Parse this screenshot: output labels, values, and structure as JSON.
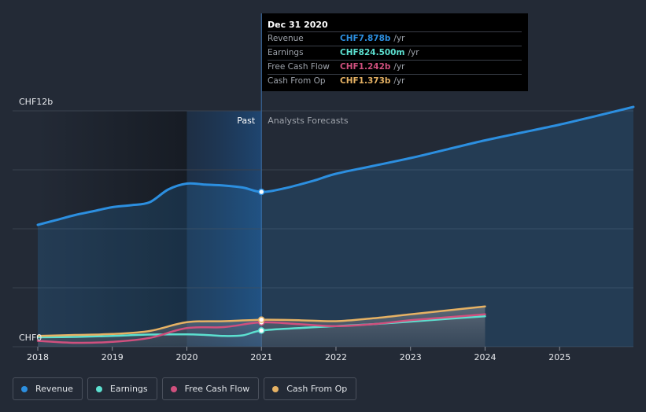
{
  "chart_data": {
    "type": "area",
    "y_axis": {
      "min_label": "CHF0",
      "max_label": "CHF12b",
      "ylim": [
        0,
        12
      ]
    },
    "unit": "CHF billions",
    "x_ticks": [
      "2018",
      "2019",
      "2020",
      "2021",
      "2022",
      "2023",
      "2024",
      "2025"
    ],
    "xlim": [
      2018.0,
      2025.99
    ],
    "past_forecast_split": 2021.0,
    "highlight_start": 2020.0,
    "region_labels": {
      "past": "Past",
      "forecast": "Analysts Forecasts"
    },
    "series": [
      {
        "name": "Revenue",
        "color": "#2c8fe0",
        "x": [
          2018.0,
          2018.25,
          2018.5,
          2018.75,
          2019.0,
          2019.25,
          2019.5,
          2019.75,
          2020.0,
          2020.25,
          2020.5,
          2020.75,
          2021.0,
          2021.3,
          2021.7,
          2022.0,
          2022.5,
          2023.0,
          2023.5,
          2024.0,
          2024.5,
          2025.0,
          2025.5,
          2025.99
        ],
        "y": [
          6.2,
          6.45,
          6.7,
          6.9,
          7.1,
          7.2,
          7.35,
          8.0,
          8.3,
          8.25,
          8.2,
          8.1,
          7.878,
          8.05,
          8.45,
          8.8,
          9.2,
          9.6,
          10.05,
          10.5,
          10.9,
          11.3,
          11.75,
          12.2
        ]
      },
      {
        "name": "Earnings",
        "color": "#5ce0d0",
        "x": [
          2018.0,
          2018.5,
          2019.0,
          2019.5,
          2020.0,
          2020.25,
          2020.5,
          2020.75,
          2021.0,
          2021.5,
          2022.0,
          2022.5,
          2023.0,
          2023.5,
          2024.0
        ],
        "y": [
          0.48,
          0.5,
          0.55,
          0.62,
          0.63,
          0.6,
          0.55,
          0.58,
          0.8245,
          0.95,
          1.05,
          1.15,
          1.28,
          1.42,
          1.55
        ]
      },
      {
        "name": "Free Cash Flow",
        "color": "#d0507e",
        "x": [
          2018.0,
          2018.5,
          2019.0,
          2019.5,
          2020.0,
          2020.5,
          2021.0,
          2021.5,
          2022.0,
          2022.5,
          2023.0,
          2023.5,
          2024.0
        ],
        "y": [
          0.3,
          0.2,
          0.25,
          0.45,
          0.95,
          1.0,
          1.242,
          1.15,
          1.05,
          1.15,
          1.35,
          1.5,
          1.65
        ]
      },
      {
        "name": "Cash From Op",
        "color": "#e6b264",
        "x": [
          2018.0,
          2018.5,
          2019.0,
          2019.5,
          2020.0,
          2020.5,
          2021.0,
          2021.5,
          2022.0,
          2022.5,
          2023.0,
          2023.5,
          2024.0
        ],
        "y": [
          0.55,
          0.6,
          0.65,
          0.8,
          1.25,
          1.3,
          1.373,
          1.35,
          1.3,
          1.45,
          1.65,
          1.85,
          2.05
        ]
      }
    ]
  },
  "tooltip": {
    "date": "Dec 31 2020",
    "rows": [
      {
        "name": "Revenue",
        "value": "CHF7.878b",
        "unit": "/yr",
        "color": "#2c8fe0"
      },
      {
        "name": "Earnings",
        "value": "CHF824.500m",
        "unit": "/yr",
        "color": "#5ce0d0"
      },
      {
        "name": "Free Cash Flow",
        "value": "CHF1.242b",
        "unit": "/yr",
        "color": "#d0507e"
      },
      {
        "name": "Cash From Op",
        "value": "CHF1.373b",
        "unit": "/yr",
        "color": "#e6b264"
      }
    ]
  },
  "legend": [
    {
      "label": "Revenue",
      "color": "#2c8fe0"
    },
    {
      "label": "Earnings",
      "color": "#5ce0d0"
    },
    {
      "label": "Free Cash Flow",
      "color": "#d0507e"
    },
    {
      "label": "Cash From Op",
      "color": "#e6b264"
    }
  ]
}
